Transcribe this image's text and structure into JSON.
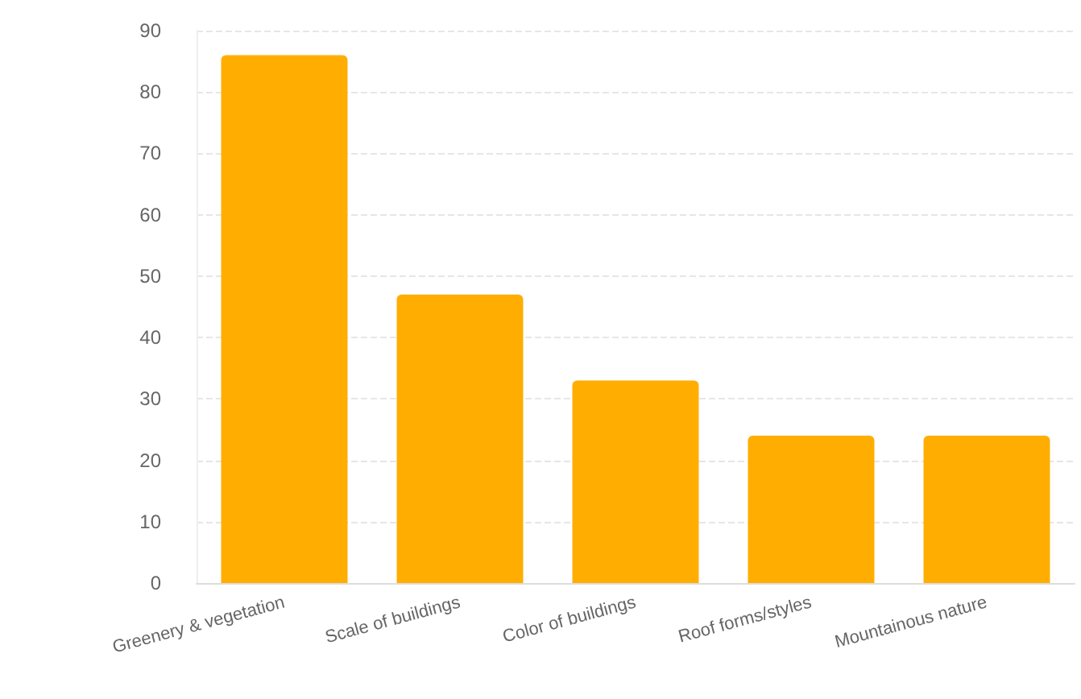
{
  "chart_data": {
    "type": "bar",
    "categories": [
      "Greenery & vegetation",
      "Scale of buildings",
      "Color of buildings",
      "Roof forms/styles",
      "Mountainous nature"
    ],
    "values": [
      86,
      47,
      33,
      24,
      24
    ],
    "color": "#ffad00",
    "ylim": [
      0,
      90
    ],
    "yticks": [
      0,
      10,
      20,
      30,
      40,
      50,
      60,
      70,
      80,
      90
    ],
    "grid": "y"
  }
}
